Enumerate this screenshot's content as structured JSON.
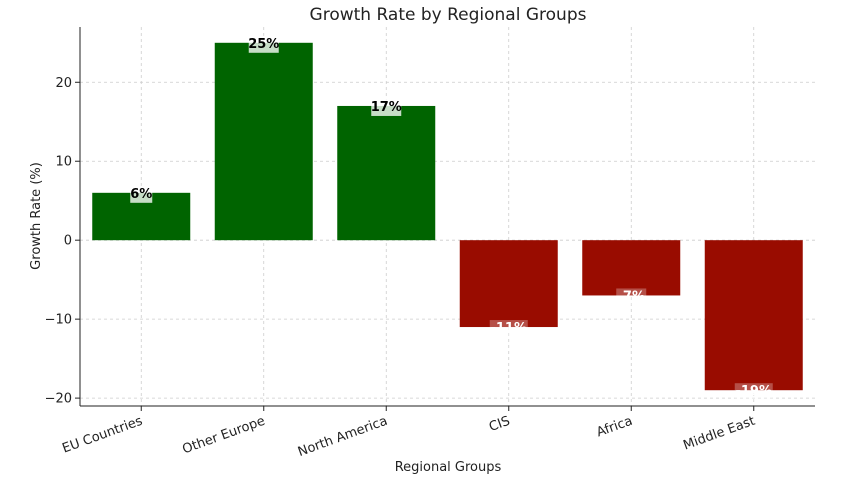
{
  "chart_data": {
    "type": "bar",
    "title": "Growth Rate by Regional Groups",
    "xlabel": "Regional Groups",
    "ylabel": "Growth Rate (%)",
    "categories": [
      "EU Countries",
      "Other Europe",
      "North America",
      "CIS",
      "Africa",
      "Middle East"
    ],
    "values": [
      6,
      25,
      17,
      -11,
      -7,
      -19
    ],
    "data_labels": [
      "6%",
      "25%",
      "17%",
      "-11%",
      "-7%",
      "-19%"
    ],
    "ylim": [
      -21,
      27
    ],
    "yticks": [
      -20,
      -10,
      0,
      10,
      20
    ],
    "ytick_labels": [
      "−20",
      "−10",
      "0",
      "10",
      "20"
    ],
    "grid": true,
    "colors": {
      "positive": "#006400",
      "negative": "#990c00"
    }
  }
}
